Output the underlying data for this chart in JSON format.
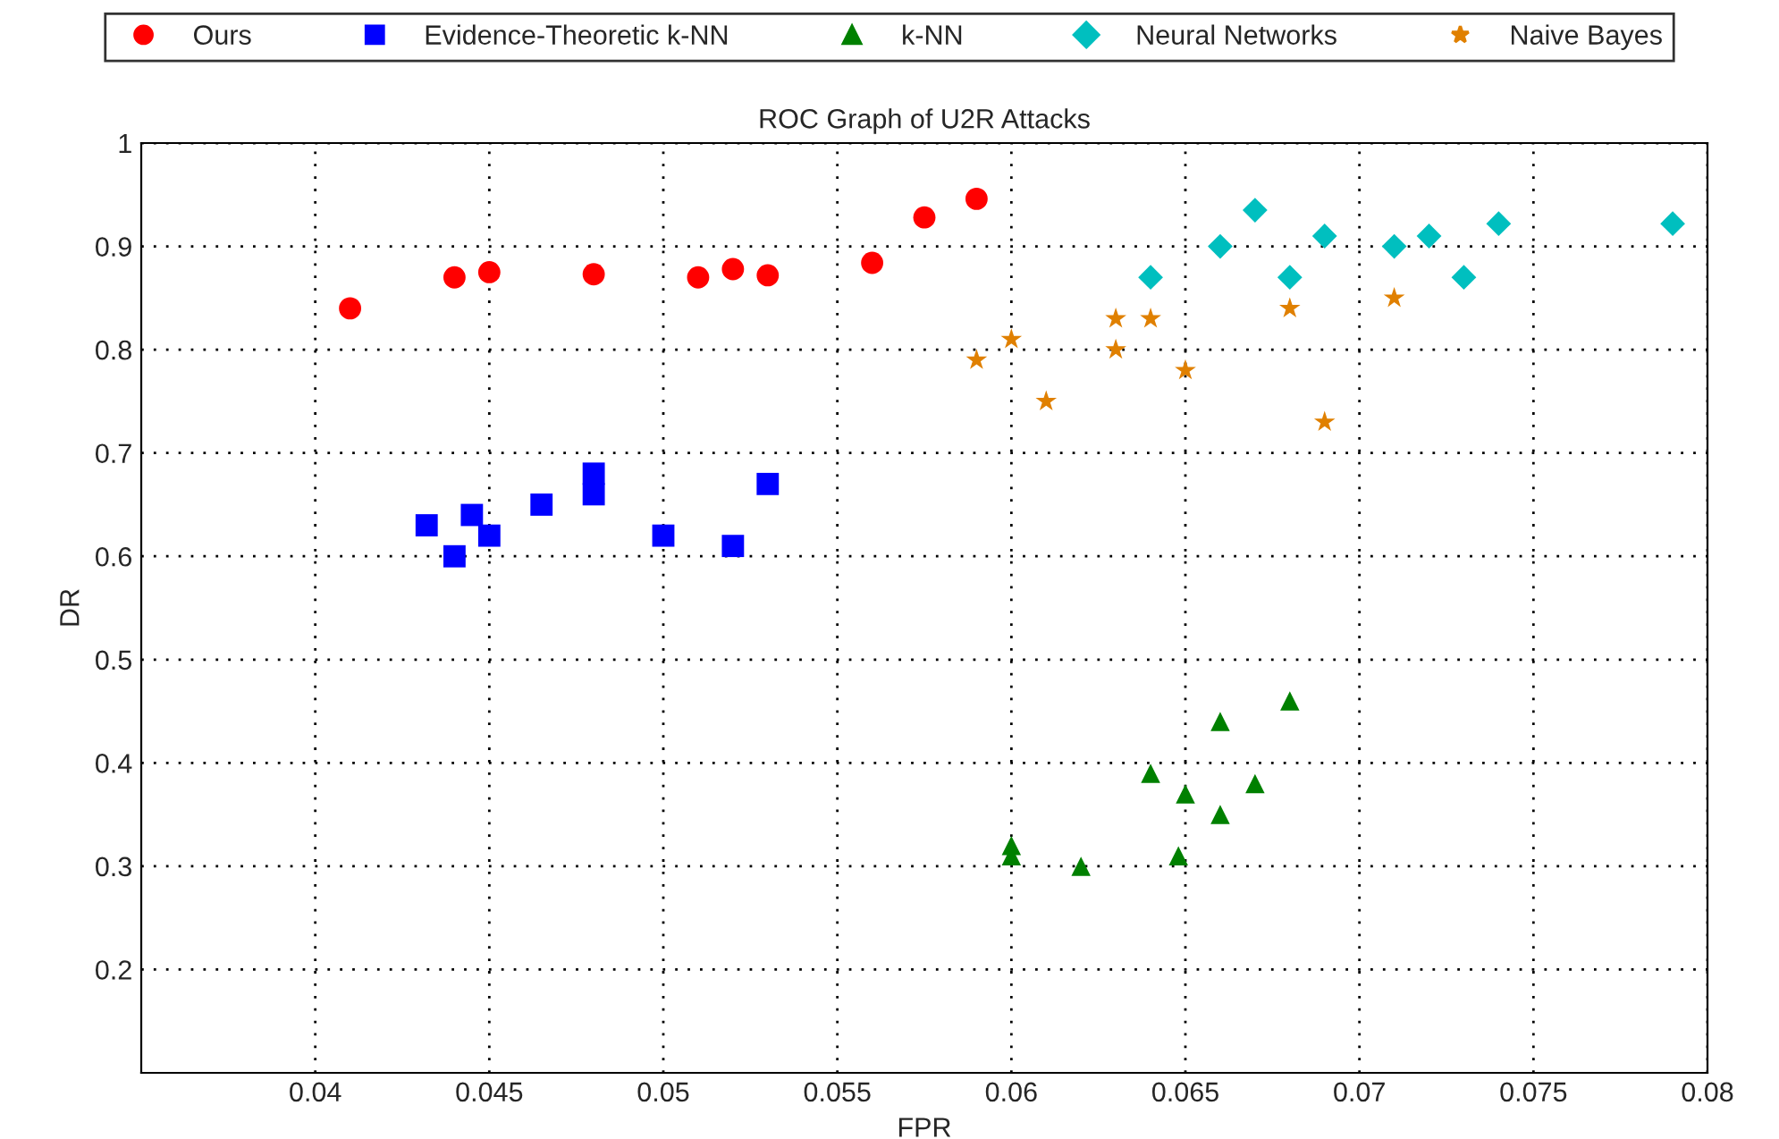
{
  "chart_data": {
    "type": "scatter",
    "title": "ROC Graph of U2R Attacks",
    "xlabel": "FPR",
    "ylabel": "DR",
    "xlim": [
      0.035,
      0.08
    ],
    "xticks": [
      0.04,
      0.045,
      0.05,
      0.055,
      0.06,
      0.065,
      0.07,
      0.075,
      0.08
    ],
    "ylim": [
      0.1,
      1
    ],
    "yticks": [
      0.2,
      0.3,
      0.4,
      0.5,
      0.6,
      0.7,
      0.8,
      0.9,
      1
    ],
    "grid": true,
    "legend": "top",
    "series": [
      {
        "name": "Ours",
        "color": "#ff0000",
        "marker": "circle",
        "x": [
          0.041,
          0.044,
          0.045,
          0.048,
          0.051,
          0.052,
          0.053,
          0.056,
          0.0575,
          0.059
        ],
        "values": [
          0.84,
          0.87,
          0.875,
          0.873,
          0.87,
          0.878,
          0.872,
          0.884,
          0.928,
          0.946
        ]
      },
      {
        "name": "Evidence-Theoretic k-NN",
        "color": "#0000ff",
        "marker": "square",
        "x": [
          0.0432,
          0.044,
          0.0445,
          0.045,
          0.0465,
          0.048,
          0.048,
          0.05,
          0.052,
          0.053
        ],
        "values": [
          0.63,
          0.6,
          0.64,
          0.62,
          0.65,
          0.68,
          0.66,
          0.62,
          0.61,
          0.67
        ]
      },
      {
        "name": "k-NN",
        "color": "#008000",
        "marker": "triangle",
        "x": [
          0.06,
          0.06,
          0.062,
          0.064,
          0.0648,
          0.065,
          0.066,
          0.066,
          0.067,
          0.068
        ],
        "values": [
          0.31,
          0.32,
          0.3,
          0.39,
          0.31,
          0.37,
          0.44,
          0.35,
          0.38,
          0.46
        ]
      },
      {
        "name": "Neural Networks",
        "color": "#00bfbf",
        "marker": "diamond",
        "x": [
          0.064,
          0.066,
          0.067,
          0.068,
          0.069,
          0.071,
          0.072,
          0.073,
          0.074,
          0.079
        ],
        "values": [
          0.87,
          0.9,
          0.935,
          0.87,
          0.91,
          0.9,
          0.91,
          0.87,
          0.922,
          0.922
        ]
      },
      {
        "name": "Naive Bayes",
        "color": "#e08000",
        "marker": "star",
        "x": [
          0.059,
          0.06,
          0.061,
          0.063,
          0.063,
          0.064,
          0.065,
          0.068,
          0.069,
          0.071
        ],
        "values": [
          0.79,
          0.81,
          0.75,
          0.83,
          0.8,
          0.83,
          0.78,
          0.84,
          0.73,
          0.85
        ]
      }
    ]
  }
}
